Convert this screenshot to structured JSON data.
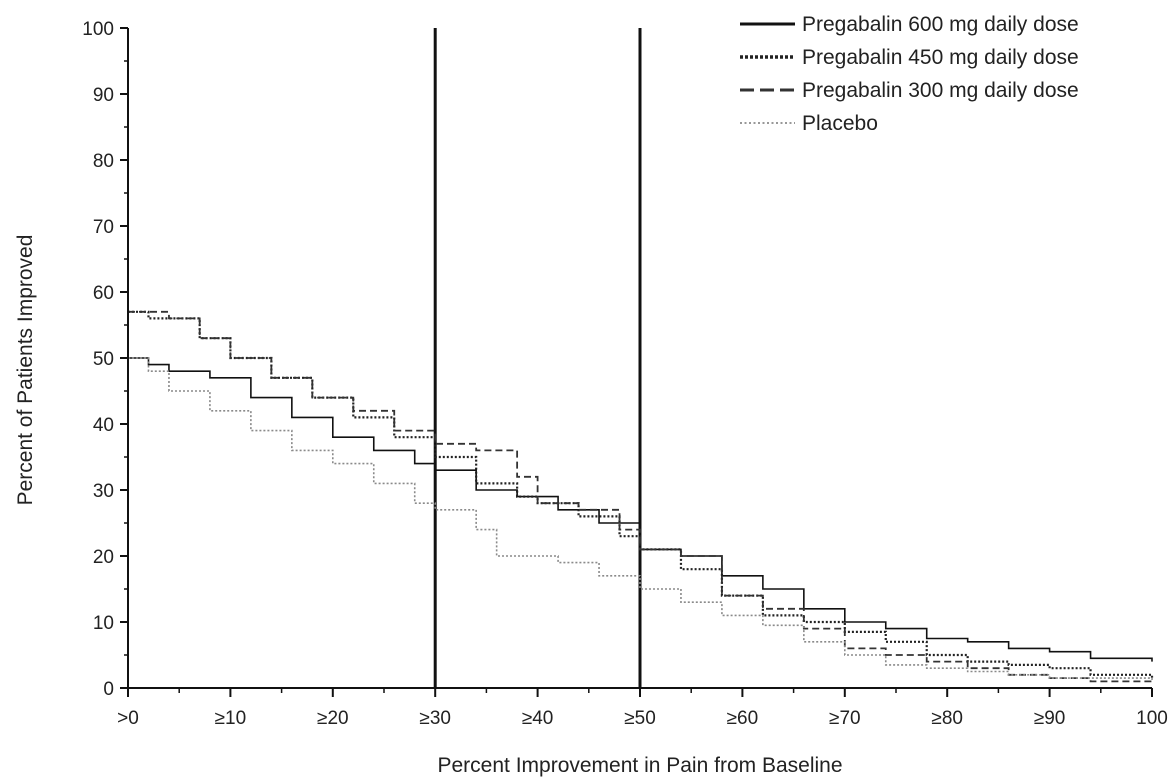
{
  "chart_data": {
    "type": "line",
    "xlabel": "Percent Improvement in Pain from Baseline",
    "ylabel": "Percent of Patients Improved",
    "xlim": [
      0,
      100
    ],
    "ylim": [
      0,
      100
    ],
    "x_ticks": [
      {
        "value": 0,
        "label": ">0"
      },
      {
        "value": 10,
        "label": "≥10"
      },
      {
        "value": 20,
        "label": "≥20"
      },
      {
        "value": 30,
        "label": "≥30"
      },
      {
        "value": 40,
        "label": "≥40"
      },
      {
        "value": 50,
        "label": "≥50"
      },
      {
        "value": 60,
        "label": "≥60"
      },
      {
        "value": 70,
        "label": "≥70"
      },
      {
        "value": 80,
        "label": "≥80"
      },
      {
        "value": 90,
        "label": "≥90"
      },
      {
        "value": 100,
        "label": "100"
      }
    ],
    "y_ticks": [
      0,
      10,
      20,
      30,
      40,
      50,
      60,
      70,
      80,
      90,
      100
    ],
    "reference_lines_x": [
      30,
      50
    ],
    "grid": false,
    "legend_position": "top-right",
    "series": [
      {
        "name": "Pregabalin 600 mg daily dose",
        "style": "solid",
        "color": "#111111",
        "x": [
          0,
          2,
          4,
          8,
          12,
          16,
          20,
          24,
          28,
          30,
          34,
          38,
          42,
          46,
          50,
          54,
          58,
          62,
          66,
          70,
          74,
          78,
          82,
          86,
          90,
          94,
          100
        ],
        "y": [
          50,
          49,
          48,
          47,
          44,
          41,
          38,
          36,
          34,
          33,
          30,
          29,
          27,
          25,
          21,
          20,
          17,
          15,
          12,
          10,
          9,
          7.5,
          7,
          6,
          5.5,
          4.5,
          4
        ]
      },
      {
        "name": "Pregabalin 450 mg daily dose",
        "style": "dotted-bold",
        "color": "#222222",
        "x": [
          0,
          2,
          4,
          7,
          10,
          14,
          18,
          22,
          26,
          30,
          34,
          38,
          40,
          44,
          48,
          50,
          54,
          58,
          62,
          66,
          70,
          74,
          78,
          82,
          86,
          90,
          94,
          100
        ],
        "y": [
          57,
          56,
          56,
          53,
          50,
          47,
          44,
          41,
          38,
          35,
          31,
          29,
          28,
          26,
          23,
          21,
          18,
          14,
          11,
          10,
          8.5,
          7,
          5,
          4,
          3.5,
          3,
          2,
          1.5
        ]
      },
      {
        "name": "Pregabalin 300 mg daily dose",
        "style": "dashed",
        "color": "#333333",
        "x": [
          0,
          2,
          4,
          7,
          10,
          14,
          18,
          22,
          26,
          30,
          34,
          38,
          40,
          44,
          48,
          50,
          54,
          58,
          62,
          66,
          70,
          74,
          78,
          82,
          86,
          90,
          94,
          100
        ],
        "y": [
          57,
          57,
          56,
          53,
          50,
          47,
          44,
          42,
          39,
          37,
          36,
          32,
          28,
          27,
          24,
          21,
          20,
          14,
          12,
          9,
          6,
          5,
          4,
          3,
          2,
          1.5,
          1,
          1
        ]
      },
      {
        "name": "Placebo",
        "style": "dotted-light",
        "color": "#8a8a8a",
        "x": [
          0,
          2,
          4,
          8,
          12,
          16,
          20,
          24,
          28,
          30,
          34,
          36,
          38,
          42,
          46,
          50,
          54,
          58,
          62,
          66,
          70,
          74,
          78,
          82,
          86,
          90,
          94,
          100
        ],
        "y": [
          50,
          48,
          45,
          42,
          39,
          36,
          34,
          31,
          28,
          27,
          24,
          20,
          20,
          19,
          17,
          15,
          13,
          11,
          9.5,
          7,
          5,
          3.5,
          3,
          2.5,
          2,
          1.5,
          1.5,
          1
        ]
      }
    ]
  }
}
